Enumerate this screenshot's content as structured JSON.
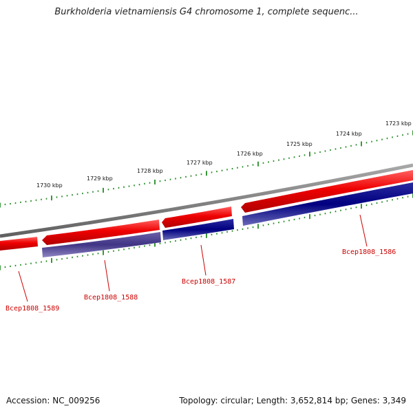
{
  "title": "Burkholderia vietnamiensis G4 chromosome 1, complete sequenc...",
  "footer": {
    "accession": "Accession: NC_009256",
    "topology": "Topology: circular; Length: 3,652,814 bp; Genes: 3,349"
  },
  "colors": {
    "forward_gene": "#ee0000",
    "reverse_gene": "#000080",
    "reverse_gene_faded": "#4a3f8a",
    "backbone": "#808080",
    "ticks": "#228b22",
    "gene_label": "#cc0000"
  },
  "scale_labels": [
    "1723 kbp",
    "1724 kbp",
    "1725 kbp",
    "1726 kbp",
    "1727 kbp",
    "1728 kbp",
    "1729 kbp",
    "1730 kbp"
  ],
  "genes": [
    {
      "label": "Bcep1808_1586"
    },
    {
      "label": "Bcep1808_1587"
    },
    {
      "label": "Bcep1808_1588"
    },
    {
      "label": "Bcep1808_1589"
    }
  ]
}
